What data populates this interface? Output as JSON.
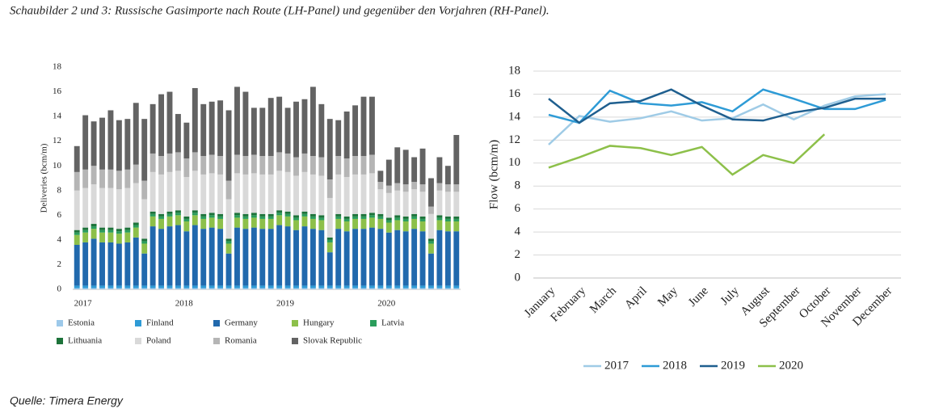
{
  "caption": "Schaubilder 2 und 3: Russische Gasimporte nach Route (LH-Panel) und gegenüber den Vorjahren (RH-Panel).",
  "source": "Quelle: Timera Energy",
  "chart_data": [
    {
      "type": "bar",
      "stacked": true,
      "y_label": "Deliveries (bcm/m)",
      "categories": [
        "2017",
        null,
        null,
        null,
        null,
        null,
        null,
        null,
        null,
        null,
        null,
        null,
        "2018",
        null,
        null,
        null,
        null,
        null,
        null,
        null,
        null,
        null,
        null,
        null,
        "2019",
        null,
        null,
        null,
        null,
        null,
        null,
        null,
        null,
        null,
        null,
        null,
        "2020",
        null,
        null,
        null,
        null,
        null,
        null,
        null,
        null,
        null
      ],
      "ylim": [
        0,
        18
      ],
      "yticks": [
        0,
        2,
        4,
        6,
        8,
        10,
        12,
        14,
        16,
        18
      ],
      "grid": false,
      "series": [
        {
          "name": "Estonia",
          "color": "#9dc9ea",
          "values": [
            0.1,
            0.1,
            0.1,
            0.1,
            0.1,
            0.1,
            0.1,
            0.1,
            0.1,
            0.1,
            0.1,
            0.1,
            0.1,
            0.1,
            0.1,
            0.1,
            0.1,
            0.1,
            0.1,
            0.1,
            0.1,
            0.1,
            0.1,
            0.1,
            0.1,
            0.1,
            0.1,
            0.1,
            0.1,
            0.1,
            0.1,
            0.1,
            0.1,
            0.1,
            0.1,
            0.1,
            0.1,
            0.1,
            0.1,
            0.1,
            0.1,
            0.1,
            0.1,
            0.1,
            0.1,
            0.1
          ]
        },
        {
          "name": "Finland",
          "color": "#2e9bd6",
          "values": [
            0.2,
            0.2,
            0.2,
            0.2,
            0.2,
            0.2,
            0.2,
            0.2,
            0.2,
            0.2,
            0.2,
            0.2,
            0.2,
            0.2,
            0.2,
            0.2,
            0.2,
            0.2,
            0.2,
            0.2,
            0.2,
            0.2,
            0.2,
            0.2,
            0.2,
            0.2,
            0.2,
            0.2,
            0.2,
            0.2,
            0.2,
            0.2,
            0.2,
            0.2,
            0.2,
            0.2,
            0.2,
            0.2,
            0.2,
            0.2,
            0.2,
            0.2,
            0.2,
            0.2,
            0.2,
            0.2
          ]
        },
        {
          "name": "Germany",
          "color": "#2169ad",
          "values": [
            3.3,
            3.5,
            3.8,
            3.5,
            3.5,
            3.4,
            3.5,
            3.9,
            2.6,
            4.8,
            4.6,
            4.8,
            4.9,
            4.4,
            4.9,
            4.6,
            4.7,
            4.6,
            2.6,
            4.7,
            4.6,
            4.7,
            4.6,
            4.6,
            4.9,
            4.8,
            4.5,
            4.8,
            4.6,
            4.5,
            2.7,
            4.6,
            4.4,
            4.6,
            4.6,
            4.7,
            4.6,
            4.3,
            4.5,
            4.4,
            4.6,
            4.4,
            2.6,
            4.5,
            4.4,
            4.4
          ]
        },
        {
          "name": "Hungary",
          "color": "#8dc04a",
          "values": [
            0.8,
            0.8,
            0.8,
            0.8,
            0.8,
            0.8,
            0.8,
            0.8,
            0.8,
            0.8,
            0.8,
            0.8,
            0.8,
            0.8,
            0.8,
            0.8,
            0.8,
            0.8,
            0.8,
            0.8,
            0.8,
            0.8,
            0.8,
            0.8,
            0.8,
            0.8,
            0.8,
            0.8,
            0.8,
            0.8,
            0.8,
            0.8,
            0.8,
            0.8,
            0.8,
            0.8,
            0.8,
            0.8,
            0.8,
            0.8,
            0.8,
            0.8,
            0.8,
            0.8,
            0.8,
            0.8
          ]
        },
        {
          "name": "Latvia",
          "color": "#2a9d5c",
          "values": [
            0.2,
            0.2,
            0.2,
            0.2,
            0.2,
            0.2,
            0.2,
            0.2,
            0.2,
            0.2,
            0.2,
            0.2,
            0.2,
            0.2,
            0.2,
            0.2,
            0.2,
            0.2,
            0.2,
            0.2,
            0.2,
            0.2,
            0.2,
            0.2,
            0.2,
            0.2,
            0.2,
            0.2,
            0.2,
            0.2,
            0.2,
            0.2,
            0.2,
            0.2,
            0.2,
            0.2,
            0.2,
            0.2,
            0.2,
            0.2,
            0.2,
            0.2,
            0.2,
            0.2,
            0.2,
            0.2
          ]
        },
        {
          "name": "Lithuania",
          "color": "#1d733a",
          "values": [
            0.2,
            0.2,
            0.2,
            0.2,
            0.2,
            0.2,
            0.2,
            0.2,
            0.2,
            0.2,
            0.2,
            0.2,
            0.2,
            0.2,
            0.2,
            0.2,
            0.2,
            0.2,
            0.2,
            0.2,
            0.2,
            0.2,
            0.2,
            0.2,
            0.2,
            0.2,
            0.2,
            0.2,
            0.2,
            0.2,
            0.2,
            0.2,
            0.2,
            0.2,
            0.2,
            0.2,
            0.2,
            0.2,
            0.2,
            0.2,
            0.2,
            0.2,
            0.2,
            0.2,
            0.2,
            0.2
          ]
        },
        {
          "name": "Poland",
          "color": "#d9d9d9",
          "values": [
            3.2,
            3.2,
            3.2,
            3.2,
            3.2,
            3.2,
            3.2,
            3.2,
            3.2,
            3.2,
            3.2,
            3.2,
            3.2,
            3.2,
            3.2,
            3.2,
            3.2,
            3.2,
            3.2,
            3.2,
            3.2,
            3.2,
            3.2,
            3.2,
            3.2,
            3.2,
            3.2,
            3.2,
            3.2,
            3.2,
            3.2,
            3.2,
            3.2,
            3.2,
            3.2,
            3.2,
            2.0,
            2.0,
            2.0,
            2.0,
            2.0,
            2.0,
            2.0,
            2.0,
            2.0,
            2.0
          ]
        },
        {
          "name": "Romania",
          "color": "#b5b5b5",
          "values": [
            1.5,
            1.5,
            1.5,
            1.5,
            1.5,
            1.5,
            1.5,
            1.5,
            1.5,
            1.5,
            1.5,
            1.5,
            1.5,
            1.5,
            1.5,
            1.5,
            1.5,
            1.5,
            1.5,
            1.5,
            1.5,
            1.5,
            1.5,
            1.5,
            1.5,
            1.5,
            1.5,
            1.5,
            1.5,
            1.5,
            1.5,
            1.5,
            1.5,
            1.5,
            1.5,
            1.5,
            0.6,
            0.6,
            0.6,
            0.6,
            0.6,
            0.6,
            0.6,
            0.6,
            0.6,
            0.6
          ]
        },
        {
          "name": "Slovak Republic",
          "color": "#636363",
          "values": [
            2.1,
            4.4,
            3.6,
            4.2,
            4.8,
            4.1,
            4.1,
            5.0,
            5.0,
            4.0,
            5.0,
            5.0,
            3.1,
            2.9,
            5.2,
            4.2,
            4.3,
            4.5,
            5.7,
            5.5,
            5.2,
            3.8,
            3.9,
            4.7,
            4.5,
            3.7,
            4.5,
            4.4,
            5.6,
            4.3,
            4.9,
            2.9,
            3.8,
            4.1,
            4.8,
            4.7,
            0.9,
            2.1,
            2.9,
            2.8,
            2.0,
            2.9,
            2.3,
            2.1,
            1.5,
            4.0
          ]
        }
      ]
    },
    {
      "type": "line",
      "y_label": "Flow (bcm/m)",
      "categories": [
        "January",
        "February",
        "March",
        "April",
        "May",
        "June",
        "July",
        "August",
        "September",
        "October",
        "November",
        "December"
      ],
      "ylim": [
        0,
        18
      ],
      "yticks": [
        0,
        2,
        4,
        6,
        8,
        10,
        12,
        14,
        16,
        18
      ],
      "grid": true,
      "legend": "bottom",
      "series": [
        {
          "name": "2017",
          "color": "#9fcbe6",
          "values": [
            11.6,
            14.1,
            13.6,
            13.9,
            14.5,
            13.7,
            13.9,
            15.1,
            13.8,
            15.0,
            15.8,
            16.0
          ]
        },
        {
          "name": "2018",
          "color": "#2e9bd6",
          "values": [
            14.2,
            13.5,
            16.3,
            15.2,
            15.0,
            15.3,
            14.5,
            16.4,
            15.6,
            14.7,
            14.7,
            15.5
          ]
        },
        {
          "name": "2019",
          "color": "#1f5f8f",
          "values": [
            15.6,
            13.5,
            15.2,
            15.4,
            16.4,
            15.0,
            13.8,
            13.7,
            14.4,
            14.8,
            15.6,
            15.6
          ]
        },
        {
          "name": "2020",
          "color": "#8dc04a",
          "values": [
            9.6,
            10.5,
            11.5,
            11.3,
            10.7,
            11.4,
            9.0,
            10.7,
            10.0,
            12.5,
            null,
            null
          ]
        }
      ]
    }
  ]
}
